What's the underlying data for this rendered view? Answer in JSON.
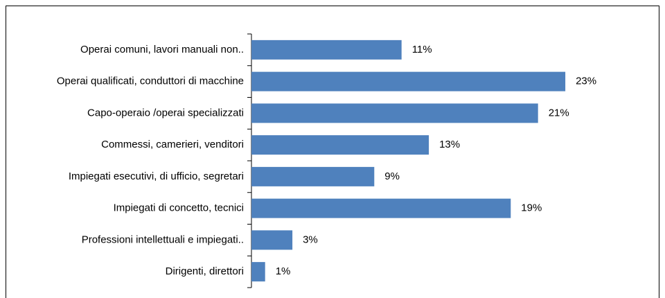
{
  "chart_data": {
    "type": "bar",
    "orientation": "horizontal",
    "categories": [
      "Operai comuni, lavori manuali non..",
      "Operai qualificati, conduttori di macchine",
      "Capo-operaio /operai specializzati",
      "Commessi, camerieri, venditori",
      "Impiegati esecutivi, di ufficio, segretari",
      "Impiegati di concetto, tecnici",
      "Professioni intellettuali e impiegati..",
      "Dirigenti, direttori"
    ],
    "values": [
      11,
      23,
      21,
      13,
      9,
      19,
      3,
      1
    ],
    "value_labels": [
      "11%",
      "23%",
      "21%",
      "13%",
      "9%",
      "19%",
      "3%",
      "1%"
    ],
    "color": "#4f81bd"
  }
}
